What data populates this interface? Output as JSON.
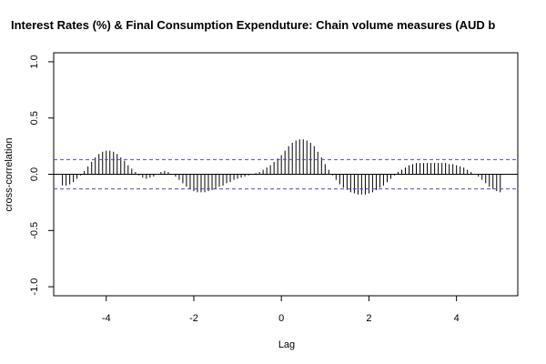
{
  "chart_data": {
    "type": "bar",
    "title": "Interest Rates (%) & Final Consumption Expenduture: Chain volume measures (AUD b",
    "xlabel": "Lag",
    "ylabel": "cross-correlation",
    "xlim": [
      -5.2,
      5.4
    ],
    "ylim": [
      -1.08,
      1.08
    ],
    "xticks": [
      -4,
      -2,
      0,
      2,
      4
    ],
    "xtick_labels": [
      "-4",
      "-2",
      "0",
      "2",
      "4"
    ],
    "yticks": [
      -1.0,
      -0.5,
      0.0,
      0.5,
      1.0
    ],
    "ytick_labels": [
      "-1.0",
      "-0.5",
      "0.0",
      "0.5",
      "1.0"
    ],
    "confidence_bound": 0.13,
    "lag_step": 0.0833,
    "lags": [
      -5.0,
      -4.917,
      -4.833,
      -4.75,
      -4.667,
      -4.583,
      -4.5,
      -4.417,
      -4.333,
      -4.25,
      -4.167,
      -4.083,
      -4.0,
      -3.917,
      -3.833,
      -3.75,
      -3.667,
      -3.583,
      -3.5,
      -3.417,
      -3.333,
      -3.25,
      -3.167,
      -3.083,
      -3.0,
      -2.917,
      -2.833,
      -2.75,
      -2.667,
      -2.583,
      -2.5,
      -2.417,
      -2.333,
      -2.25,
      -2.167,
      -2.083,
      -2.0,
      -1.917,
      -1.833,
      -1.75,
      -1.667,
      -1.583,
      -1.5,
      -1.417,
      -1.333,
      -1.25,
      -1.167,
      -1.083,
      -1.0,
      -0.917,
      -0.833,
      -0.75,
      -0.667,
      -0.583,
      -0.5,
      -0.417,
      -0.333,
      -0.25,
      -0.167,
      -0.083,
      0.0,
      0.083,
      0.167,
      0.25,
      0.333,
      0.417,
      0.5,
      0.583,
      0.667,
      0.75,
      0.833,
      0.917,
      1.0,
      1.083,
      1.167,
      1.25,
      1.333,
      1.417,
      1.5,
      1.583,
      1.667,
      1.75,
      1.833,
      1.917,
      2.0,
      2.083,
      2.167,
      2.25,
      2.333,
      2.417,
      2.5,
      2.583,
      2.667,
      2.75,
      2.833,
      2.917,
      3.0,
      3.083,
      3.167,
      3.25,
      3.333,
      3.417,
      3.5,
      3.583,
      3.667,
      3.75,
      3.833,
      3.917,
      4.0,
      4.083,
      4.167,
      4.25,
      4.333,
      4.417,
      4.5,
      4.583,
      4.667,
      4.75,
      4.833,
      4.917,
      5.0
    ],
    "values": [
      -0.1,
      -0.1,
      -0.09,
      -0.07,
      -0.04,
      -0.01,
      0.03,
      0.07,
      0.11,
      0.15,
      0.18,
      0.2,
      0.21,
      0.21,
      0.2,
      0.18,
      0.15,
      0.12,
      0.08,
      0.05,
      0.02,
      -0.01,
      -0.03,
      -0.04,
      -0.03,
      -0.02,
      0.0,
      0.02,
      0.03,
      0.02,
      0.0,
      -0.02,
      -0.05,
      -0.08,
      -0.11,
      -0.13,
      -0.15,
      -0.16,
      -0.16,
      -0.16,
      -0.15,
      -0.14,
      -0.13,
      -0.11,
      -0.1,
      -0.08,
      -0.07,
      -0.05,
      -0.04,
      -0.03,
      -0.02,
      -0.01,
      0.0,
      0.01,
      0.02,
      0.04,
      0.06,
      0.08,
      0.11,
      0.14,
      0.17,
      0.21,
      0.25,
      0.28,
      0.3,
      0.31,
      0.31,
      0.3,
      0.28,
      0.25,
      0.2,
      0.15,
      0.09,
      0.04,
      -0.01,
      -0.05,
      -0.09,
      -0.12,
      -0.14,
      -0.16,
      -0.17,
      -0.18,
      -0.18,
      -0.18,
      -0.17,
      -0.16,
      -0.14,
      -0.12,
      -0.1,
      -0.07,
      -0.04,
      -0.01,
      0.02,
      0.04,
      0.06,
      0.08,
      0.09,
      0.1,
      0.1,
      0.1,
      0.1,
      0.1,
      0.1,
      0.1,
      0.1,
      0.1,
      0.09,
      0.09,
      0.08,
      0.07,
      0.06,
      0.04,
      0.02,
      0.0,
      -0.02,
      -0.05,
      -0.08,
      -0.11,
      -0.13,
      -0.15,
      -0.16
    ],
    "colors": {
      "bars": "#000000",
      "zero_line": "#000000",
      "confidence_lines": "#4b4bd6",
      "frame": "#000000"
    }
  }
}
